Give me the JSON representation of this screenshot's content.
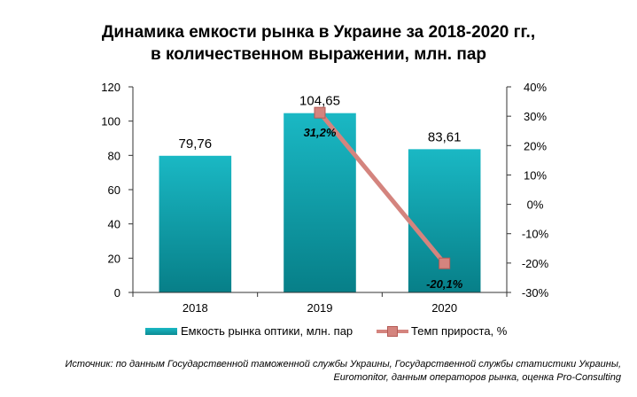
{
  "chart_data": {
    "type": "bar",
    "title": "Динамика емкости рынка в Украине за 2018-2020 гг.,",
    "subtitle": "в количественном выражении, млн. пар",
    "categories": [
      "2018",
      "2019",
      "2020"
    ],
    "series": [
      {
        "name": "Емкость рынка оптики, млн. пар",
        "type": "bar",
        "axis": "left",
        "values": [
          79.76,
          104.65,
          83.61
        ],
        "labels": [
          "79,76",
          "104,65",
          "83,61"
        ],
        "color": "#12a6b0"
      },
      {
        "name": "Темп прироста, %",
        "type": "line",
        "axis": "right",
        "values": [
          null,
          31.2,
          -20.1
        ],
        "labels": [
          "",
          "31,2%",
          "-20,1%"
        ],
        "color": "#d4847e"
      }
    ],
    "y_left": {
      "min": 0,
      "max": 120,
      "ticks": [
        "0",
        "20",
        "40",
        "60",
        "80",
        "100",
        "120"
      ]
    },
    "y_right": {
      "min": -30,
      "max": 40,
      "ticks": [
        "-30%",
        "-20%",
        "-10%",
        "0%",
        "10%",
        "20%",
        "30%",
        "40%"
      ]
    },
    "legend_position": "bottom",
    "grid": false
  },
  "source": {
    "line1": "Источник: по данным Государственной таможенной службы Украины, Государственной службы статистики Украины,",
    "line2": "Euromonitor, данным операторов рынка, оценка Pro-Consulting"
  }
}
